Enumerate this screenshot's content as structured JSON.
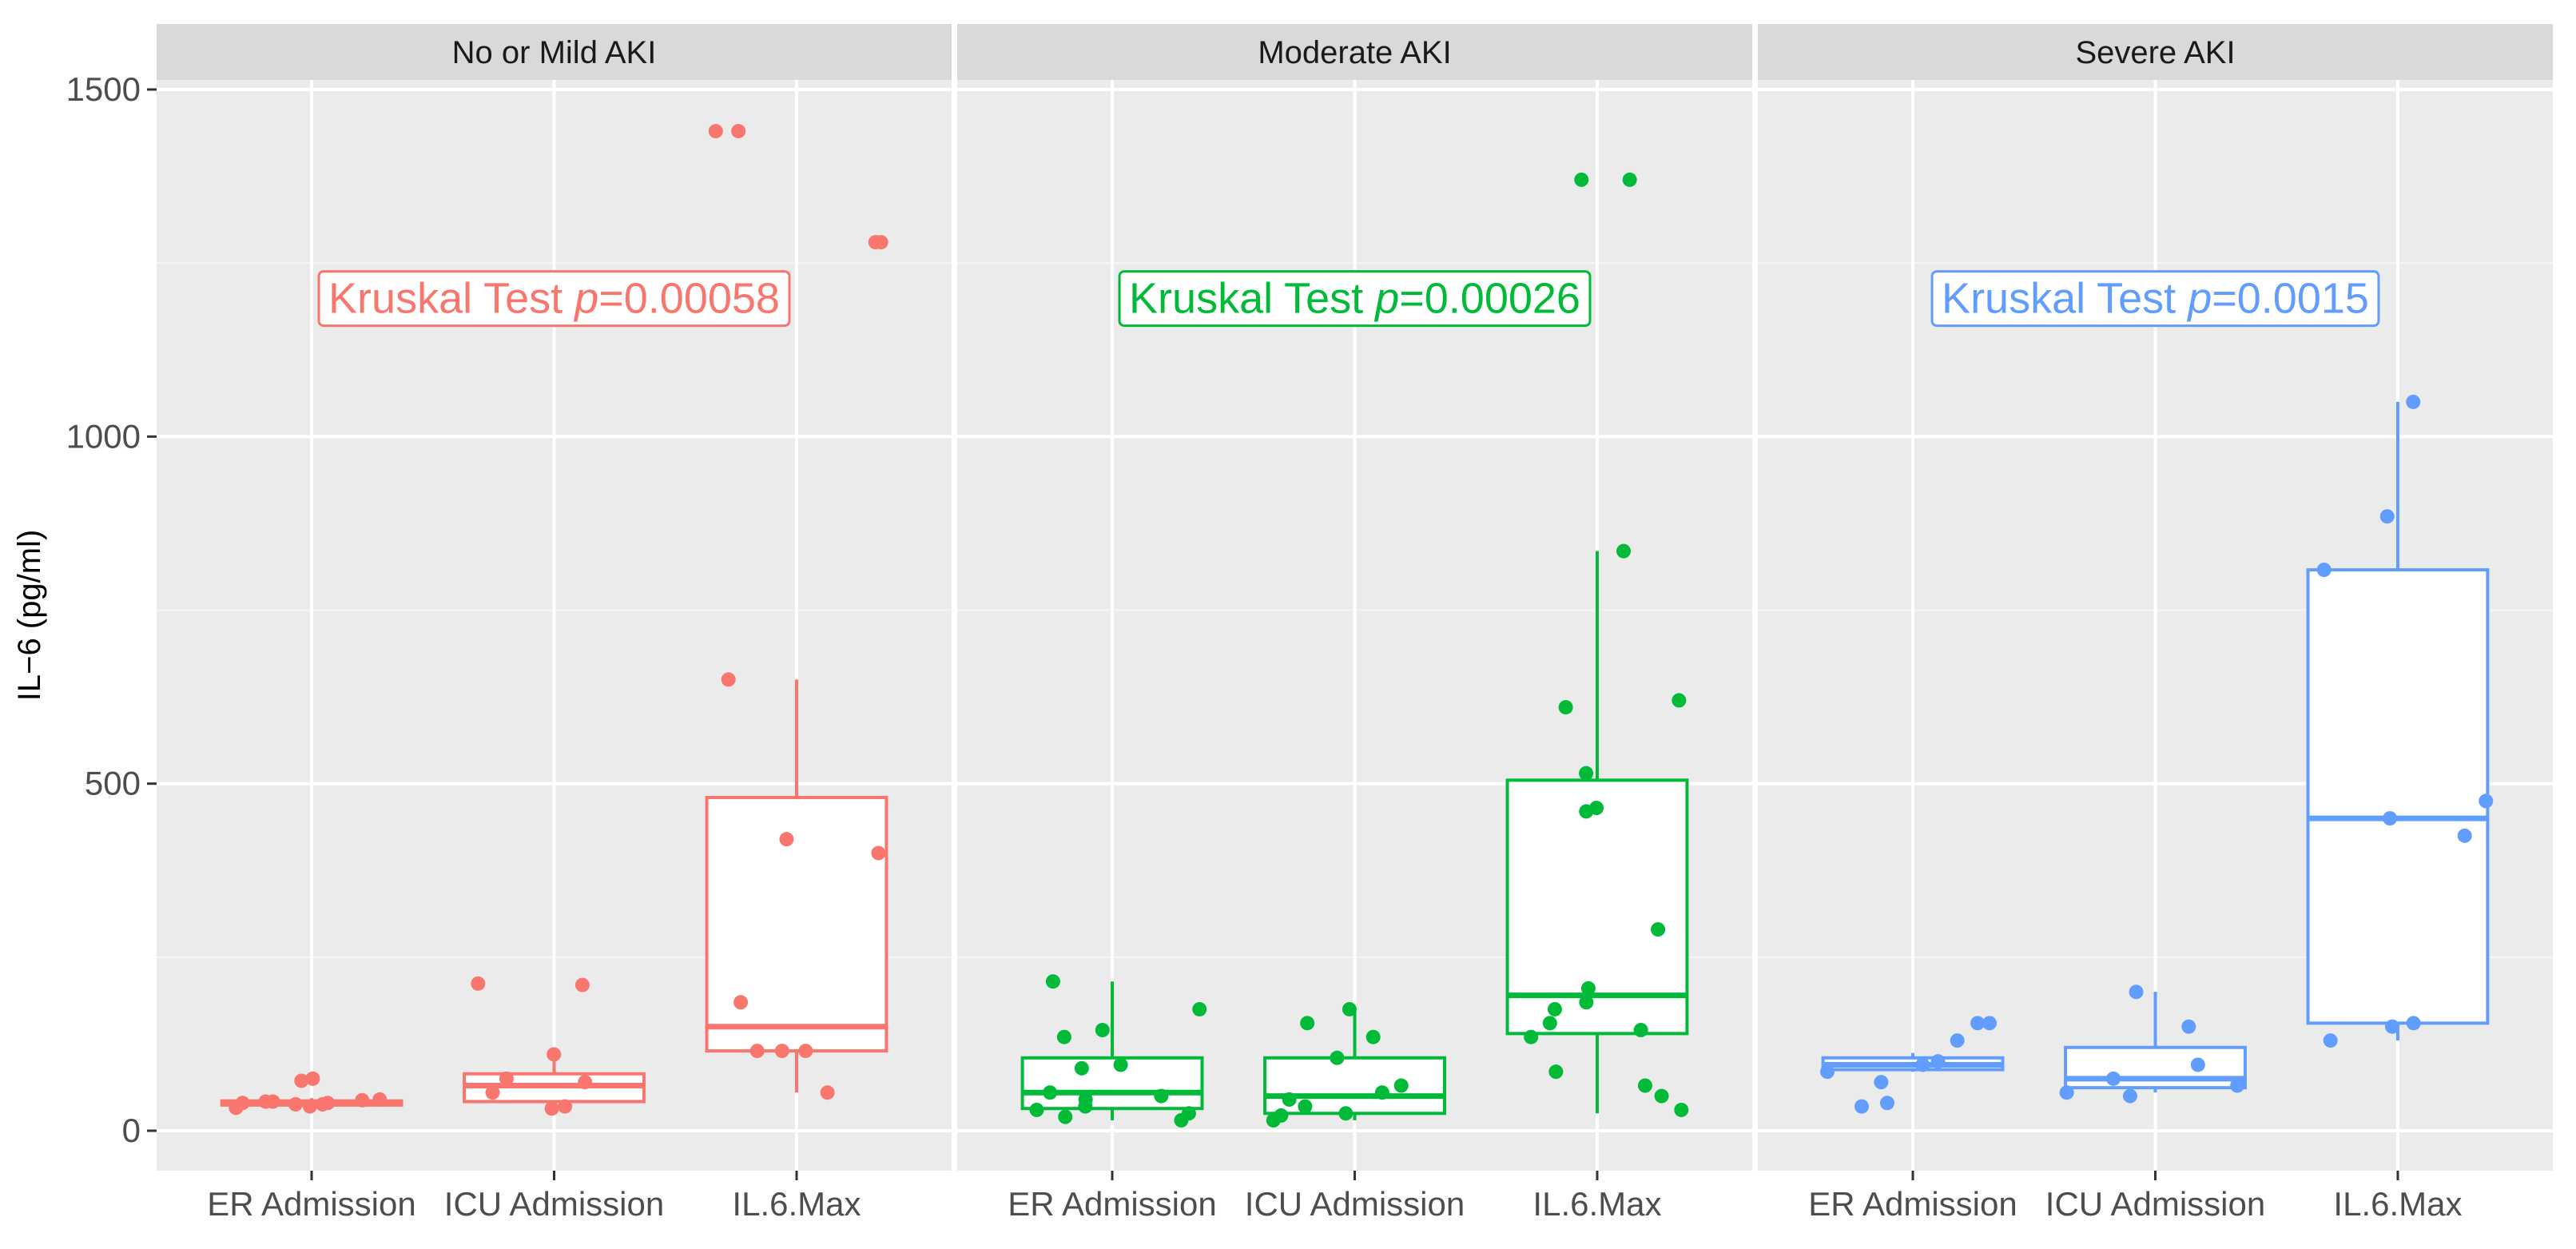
{
  "chart_data": {
    "type": "boxplot",
    "ylabel": "IL−6 (pg/ml)",
    "xlabel": "",
    "ylim": [
      -60,
      1500
    ],
    "yticks": [
      0,
      500,
      1000,
      1500
    ],
    "categories": [
      "ER Admission",
      "ICU Admission",
      "IL.6.Max"
    ],
    "panels": [
      {
        "name": "No or Mild AKI",
        "color": "#F8766D",
        "annotation": {
          "prefix": "Kruskal Test ",
          "p_symbol": "p",
          "value": "=0.00058",
          "y": 1200
        },
        "boxes": [
          {
            "category": "ER Admission",
            "min": 35,
            "q1": 37,
            "median": 40,
            "q3": 43,
            "max": 47
          },
          {
            "category": "ICU Admission",
            "min": 40,
            "q1": 42,
            "median": 65,
            "q3": 82,
            "max": 110
          },
          {
            "category": "IL.6.Max",
            "min": 55,
            "q1": 115,
            "median": 150,
            "q3": 480,
            "max": 650
          }
        ],
        "points": [
          {
            "category": "ER Admission",
            "values": [
              35,
              38,
              40,
              42,
              72,
              75,
              33,
              45,
              40,
              38,
              42,
              44
            ]
          },
          {
            "category": "ICU Admission",
            "values": [
              210,
              212,
              110,
              75,
              70,
              55,
              35,
              32
            ]
          },
          {
            "category": "IL.6.Max",
            "values": [
              1440,
              1440,
              1280,
              1280,
              650,
              420,
              400,
              185,
              115,
              115,
              55,
              115
            ]
          }
        ]
      },
      {
        "name": "Moderate AKI",
        "color": "#00BA38",
        "annotation": {
          "prefix": "Kruskal Test ",
          "p_symbol": "p",
          "value": "=0.00026",
          "y": 1200
        },
        "boxes": [
          {
            "category": "ER Admission",
            "min": 15,
            "q1": 32,
            "median": 55,
            "q3": 105,
            "max": 215
          },
          {
            "category": "ICU Admission",
            "min": 15,
            "q1": 25,
            "median": 50,
            "q3": 105,
            "max": 175
          },
          {
            "category": "IL.6.Max",
            "min": 25,
            "q1": 140,
            "median": 195,
            "q3": 505,
            "max": 835
          }
        ],
        "points": [
          {
            "category": "ER Admission",
            "values": [
              215,
              175,
              145,
              135,
              95,
              90,
              55,
              50,
              45,
              35,
              30,
              25,
              20,
              15
            ]
          },
          {
            "category": "ICU Admission",
            "values": [
              175,
              155,
              135,
              105,
              65,
              55,
              45,
              35,
              25,
              22,
              15
            ]
          },
          {
            "category": "IL.6.Max",
            "values": [
              1370,
              1370,
              835,
              620,
              610,
              515,
              465,
              460,
              290,
              205,
              185,
              175,
              155,
              145,
              135,
              85,
              65,
              50,
              30
            ]
          }
        ]
      },
      {
        "name": "Severe AKI",
        "color": "#619CFF",
        "annotation": {
          "prefix": "Kruskal Test ",
          "p_symbol": "p",
          "value": "=0.0015",
          "y": 1200
        },
        "boxes": [
          {
            "category": "ER Admission",
            "min": 85,
            "q1": 88,
            "median": 95,
            "q3": 105,
            "max": 112
          },
          {
            "category": "ICU Admission",
            "min": 55,
            "q1": 62,
            "median": 75,
            "q3": 120,
            "max": 200
          },
          {
            "category": "IL.6.Max",
            "min": 130,
            "q1": 155,
            "median": 450,
            "q3": 808,
            "max": 1050
          }
        ],
        "points": [
          {
            "category": "ER Admission",
            "values": [
              155,
              155,
              130,
              100,
              95,
              85,
              70,
              40,
              35
            ]
          },
          {
            "category": "ICU Admission",
            "values": [
              200,
              150,
              95,
              75,
              65,
              55,
              50
            ]
          },
          {
            "category": "IL.6.Max",
            "values": [
              1050,
              885,
              808,
              475,
              450,
              425,
              155,
              150,
              130
            ]
          }
        ]
      }
    ]
  }
}
